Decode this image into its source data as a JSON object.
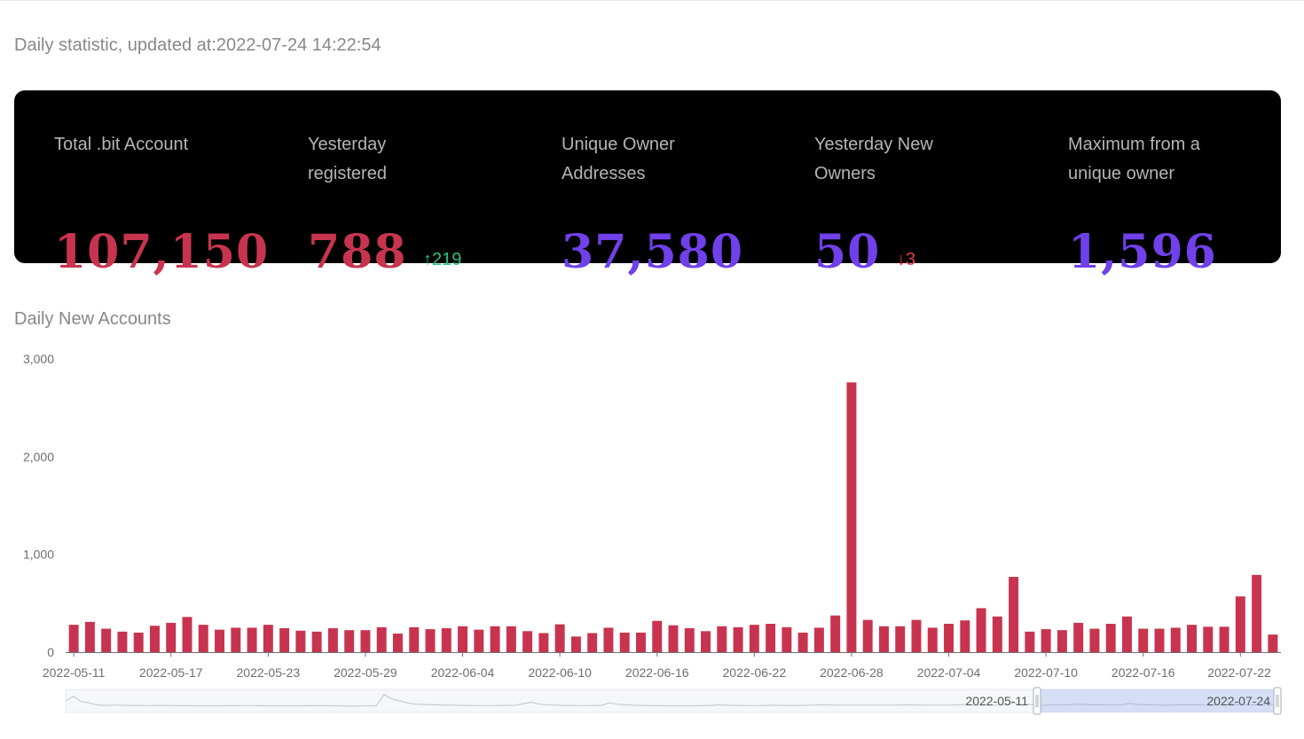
{
  "header": {
    "updated_text": "Daily statistic, updated at:2022-07-24 14:22:54"
  },
  "stats": [
    {
      "label": "Total .bit Account",
      "value": "107,150",
      "color": "#c8344f"
    },
    {
      "label": "Yesterday registered",
      "value": "788",
      "color": "#c8344f",
      "delta": "219",
      "delta_dir": "up"
    },
    {
      "label": "Unique Owner Addresses",
      "value": "37,580",
      "color": "#7040ea"
    },
    {
      "label": "Yesterday New Owners",
      "value": "50",
      "color": "#7040ea",
      "delta": "3",
      "delta_dir": "down"
    },
    {
      "label": "Maximum from a unique owner",
      "value": "1,596",
      "color": "#7040ea"
    }
  ],
  "section": {
    "title": "Daily New Accounts"
  },
  "zoom": {
    "start_label": "2022-05-11",
    "end_label": "2022-07-24"
  },
  "chart_data": {
    "type": "bar",
    "bar_color": "#c8344f",
    "ylim": [
      0,
      3000
    ],
    "yticks": [
      0,
      1000,
      2000,
      3000
    ],
    "ytick_labels": [
      "0",
      "1,000",
      "2,000",
      "3,000"
    ],
    "xtick_labels": [
      "2022-05-11",
      "2022-05-17",
      "2022-05-23",
      "2022-05-29",
      "2022-06-04",
      "2022-06-10",
      "2022-06-16",
      "2022-06-22",
      "2022-06-28",
      "2022-07-04",
      "2022-07-10",
      "2022-07-16",
      "2022-07-22"
    ],
    "grid": false,
    "dates": [
      "2022-05-11",
      "2022-05-12",
      "2022-05-13",
      "2022-05-14",
      "2022-05-15",
      "2022-05-16",
      "2022-05-17",
      "2022-05-18",
      "2022-05-19",
      "2022-05-20",
      "2022-05-21",
      "2022-05-22",
      "2022-05-23",
      "2022-05-24",
      "2022-05-25",
      "2022-05-26",
      "2022-05-27",
      "2022-05-28",
      "2022-05-29",
      "2022-05-30",
      "2022-05-31",
      "2022-06-01",
      "2022-06-02",
      "2022-06-03",
      "2022-06-04",
      "2022-06-05",
      "2022-06-06",
      "2022-06-07",
      "2022-06-08",
      "2022-06-09",
      "2022-06-10",
      "2022-06-11",
      "2022-06-12",
      "2022-06-13",
      "2022-06-14",
      "2022-06-15",
      "2022-06-16",
      "2022-06-17",
      "2022-06-18",
      "2022-06-19",
      "2022-06-20",
      "2022-06-21",
      "2022-06-22",
      "2022-06-23",
      "2022-06-24",
      "2022-06-25",
      "2022-06-26",
      "2022-06-27",
      "2022-06-28",
      "2022-06-29",
      "2022-06-30",
      "2022-07-01",
      "2022-07-02",
      "2022-07-03",
      "2022-07-04",
      "2022-07-05",
      "2022-07-06",
      "2022-07-07",
      "2022-07-08",
      "2022-07-09",
      "2022-07-10",
      "2022-07-11",
      "2022-07-12",
      "2022-07-13",
      "2022-07-14",
      "2022-07-15",
      "2022-07-16",
      "2022-07-17",
      "2022-07-18",
      "2022-07-19",
      "2022-07-20",
      "2022-07-21",
      "2022-07-22",
      "2022-07-23",
      "2022-07-24"
    ],
    "values": [
      280,
      310,
      240,
      210,
      200,
      270,
      300,
      360,
      280,
      230,
      250,
      250,
      280,
      245,
      220,
      210,
      245,
      225,
      225,
      255,
      190,
      255,
      235,
      245,
      265,
      230,
      265,
      265,
      215,
      195,
      285,
      160,
      195,
      250,
      200,
      200,
      320,
      275,
      245,
      215,
      265,
      255,
      280,
      290,
      255,
      200,
      250,
      375,
      2760,
      330,
      265,
      265,
      330,
      250,
      290,
      325,
      450,
      365,
      770,
      210,
      235,
      225,
      300,
      240,
      290,
      365,
      240,
      240,
      250,
      280,
      260,
      260,
      570,
      790,
      180
    ],
    "overview_values": [
      150,
      220,
      140,
      120,
      90,
      80,
      85,
      85,
      80,
      80,
      78,
      78,
      80,
      80,
      78,
      76,
      75,
      75,
      75,
      75,
      75,
      76,
      77,
      78,
      78,
      75,
      75,
      75,
      75,
      75,
      75,
      75,
      76,
      77,
      75,
      75,
      70,
      70,
      72,
      74,
      76,
      250,
      180,
      150,
      120,
      100,
      95,
      90,
      90,
      85,
      85,
      80,
      80,
      78,
      78,
      78,
      80,
      82,
      85,
      110,
      130,
      100,
      90,
      85,
      80,
      80,
      78,
      78,
      80,
      82,
      120,
      100,
      90,
      85,
      80,
      78,
      76,
      75,
      75,
      75,
      75,
      75,
      78,
      80,
      90,
      85,
      80,
      80,
      78,
      78,
      80,
      85,
      80,
      80,
      80,
      82,
      85,
      90,
      88,
      85,
      85,
      85,
      85,
      85,
      85,
      85,
      85,
      85,
      90,
      88,
      86,
      85,
      85,
      85,
      85,
      90,
      95,
      85,
      88,
      85,
      85,
      90,
      120,
      90,
      95,
      85,
      85,
      88,
      88,
      90,
      100,
      95,
      90,
      90,
      88,
      88,
      90,
      110,
      95,
      90,
      90,
      85,
      85,
      90,
      92,
      90,
      90,
      88,
      88,
      90,
      100,
      95,
      92,
      90,
      90,
      95,
      100
    ]
  }
}
